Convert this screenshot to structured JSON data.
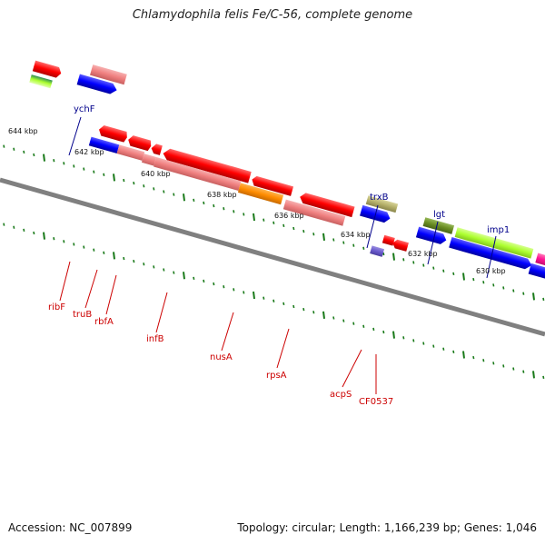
{
  "title": "Chlamydophila felis Fe/C-56, complete genome",
  "accession": "Accession: NC_007899",
  "summary": "Topology: circular; Length: 1,166,239 bp; Genes: 1,046",
  "tick_labels": [
    "644 kbp",
    "642 kbp",
    "640 kbp",
    "638 kbp",
    "636 kbp",
    "634 kbp",
    "632 kbp",
    "630 kbp"
  ],
  "genes_top": [
    "ychF",
    "trxB",
    "lgt",
    "imp1"
  ],
  "genes_bottom": [
    "ribF",
    "truB",
    "rbfA",
    "infB",
    "nusA",
    "rpsA",
    "acpS",
    "CF0537"
  ],
  "colors": {
    "backbone": "#808080",
    "tick": "#1a7a1a",
    "label_top": "#00008b",
    "label_bottom": "#cc0000",
    "feature_red": "#ff0000",
    "feature_pink": "#f08080",
    "feature_blue": "#0000ff",
    "feature_orange": "#ff8c00",
    "feature_khaki": "#b5b06a",
    "feature_olive": "#6b8e23",
    "feature_lime": "#adff2f",
    "feature_magenta": "#ff1493",
    "feature_slate": "#6a5acd"
  }
}
